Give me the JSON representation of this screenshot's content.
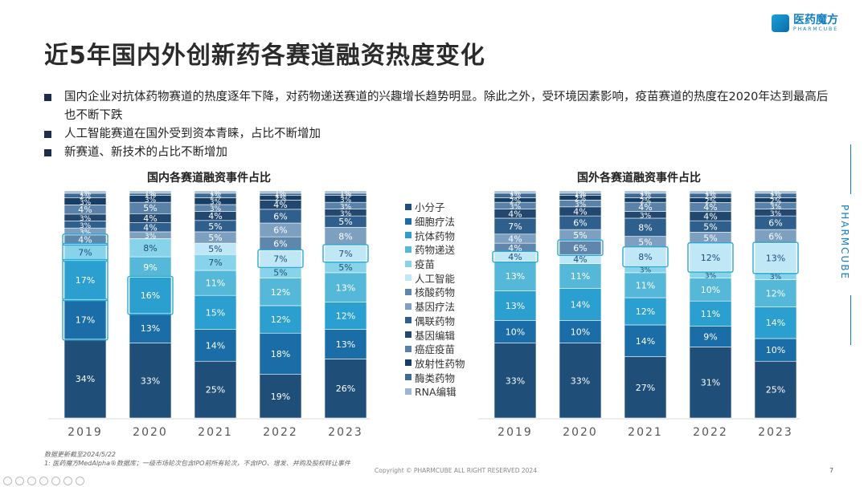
{
  "header": {
    "title": "近5年国内外创新药各赛道融资热度变化",
    "logo_cn": "医药魔方",
    "logo_en": "PHARMCUBE"
  },
  "bullets": [
    "国内企业对抗体药物赛道的热度逐年下降，对药物递送赛道的兴趣增长趋势明显。除此之外，受环境因素影响，疫苗赛道的热度在2020年达到最高后也不断下跌",
    "人工智能赛道在国外受到资本青睐，占比不断增加",
    "新赛道、新技术的占比不断增加"
  ],
  "side_brand": "PHARMCUBE",
  "legend": {
    "items": [
      "小分子",
      "细胞疗法",
      "抗体药物",
      "药物递送",
      "疫苗",
      "人工智能",
      "核酸药物",
      "基因疗法",
      "偶联药物",
      "基因编辑",
      "癌症疫苗",
      "放射性药物",
      "酶类药物",
      "RNA编辑"
    ]
  },
  "colors": {
    "小分子": "#1f4e79",
    "细胞疗法": "#1a6da6",
    "抗体药物": "#2a9fd0",
    "药物递送": "#56b8d8",
    "疫苗": "#86d3ea",
    "人工智能": "#bfe7f5",
    "核酸药物": "#5f86ab",
    "基因疗法": "#7d9fc0",
    "偶联药物": "#2f5f8c",
    "基因编辑": "#22486f",
    "癌症疫苗": "#5a82a8",
    "放射性药物": "#163d63",
    "酶类药物": "#3e6a93",
    "RNA编辑": "#9cb6d0",
    "highlight_border": "#2aa8d8"
  },
  "chart_data": [
    {
      "type": "bar",
      "stacked": "percent",
      "title": "国内各赛道融资事件占比",
      "categories": [
        "2019",
        "2020",
        "2021",
        "2022",
        "2023"
      ],
      "series": [
        {
          "name": "小分子",
          "values": [
            34,
            33,
            25,
            19,
            26
          ]
        },
        {
          "name": "细胞疗法",
          "values": [
            17,
            13,
            14,
            18,
            13
          ]
        },
        {
          "name": "抗体药物",
          "values": [
            17,
            16,
            15,
            12,
            12
          ]
        },
        {
          "name": "药物递送",
          "values": [
            0,
            9,
            11,
            12,
            13
          ]
        },
        {
          "name": "疫苗",
          "values": [
            7,
            8,
            7,
            5,
            5
          ]
        },
        {
          "name": "人工智能",
          "values": [
            0,
            0,
            5,
            7,
            7
          ]
        },
        {
          "name": "核酸药物",
          "values": [
            4,
            0,
            0,
            6,
            0
          ]
        },
        {
          "name": "基因疗法",
          "values": [
            3,
            3,
            5,
            6,
            8
          ]
        },
        {
          "name": "偶联药物",
          "values": [
            3,
            4,
            5,
            6,
            5
          ]
        },
        {
          "name": "基因编辑",
          "values": [
            3,
            4,
            4,
            4,
            3
          ]
        },
        {
          "name": "癌症疫苗",
          "values": [
            4,
            5,
            3,
            0,
            3
          ]
        },
        {
          "name": "放射性药物",
          "values": [
            3,
            3,
            3,
            2,
            3
          ]
        },
        {
          "name": "酶类药物",
          "values": [
            2,
            1,
            2,
            1,
            1
          ]
        },
        {
          "name": "RNA编辑",
          "values": [
            1,
            1,
            1,
            1,
            1
          ]
        }
      ],
      "highlights": [
        {
          "category": "2019",
          "series": [
            "细胞疗法",
            "抗体药物",
            "疫苗",
            "核酸药物"
          ]
        },
        {
          "category": "2020",
          "series": [
            "抗体药物"
          ]
        },
        {
          "category": "2022",
          "series": [
            "人工智能"
          ]
        },
        {
          "category": "2023",
          "series": [
            "人工智能"
          ]
        }
      ]
    },
    {
      "type": "bar",
      "stacked": "percent",
      "title": "国外各赛道融资事件占比",
      "categories": [
        "2019",
        "2020",
        "2021",
        "2022",
        "2023"
      ],
      "series": [
        {
          "name": "小分子",
          "values": [
            33,
            33,
            27,
            31,
            25
          ]
        },
        {
          "name": "细胞疗法",
          "values": [
            10,
            10,
            14,
            9,
            10
          ]
        },
        {
          "name": "抗体药物",
          "values": [
            13,
            14,
            12,
            11,
            14
          ]
        },
        {
          "name": "药物递送",
          "values": [
            13,
            11,
            11,
            10,
            12
          ]
        },
        {
          "name": "疫苗",
          "values": [
            0,
            0,
            3,
            3,
            3
          ]
        },
        {
          "name": "人工智能",
          "values": [
            4,
            4,
            8,
            12,
            13
          ]
        },
        {
          "name": "核酸药物",
          "values": [
            4,
            6,
            0,
            0,
            0
          ]
        },
        {
          "name": "基因疗法",
          "values": [
            4,
            5,
            5,
            5,
            6
          ]
        },
        {
          "name": "偶联药物",
          "values": [
            7,
            6,
            8,
            5,
            6
          ]
        },
        {
          "name": "基因编辑",
          "values": [
            4,
            4,
            3,
            4,
            3
          ]
        },
        {
          "name": "癌症疫苗",
          "values": [
            3,
            3,
            4,
            4,
            3
          ]
        },
        {
          "name": "放射性药物",
          "values": [
            2,
            2,
            2,
            2,
            2
          ]
        },
        {
          "name": "酶类药物",
          "values": [
            2,
            1,
            2,
            2,
            2
          ]
        },
        {
          "name": "RNA编辑",
          "values": [
            1,
            1,
            1,
            1,
            1
          ]
        }
      ],
      "highlights": [
        {
          "category": "2019",
          "series": [
            "人工智能"
          ]
        },
        {
          "category": "2020",
          "series": [
            "核酸药物"
          ]
        },
        {
          "category": "2021",
          "series": [
            "人工智能"
          ]
        },
        {
          "category": "2022",
          "series": [
            "人工智能"
          ]
        },
        {
          "category": "2023",
          "series": [
            "人工智能"
          ]
        }
      ]
    }
  ],
  "footnotes": [
    "数据更新截至2024/5/22",
    "1:   医药魔方MedAlpha®数据库；一级市场轮次包含IPO前所有轮次，不含IPO、增发、并购及股权转让事件"
  ],
  "copyright": "Copyright © PHARMCUBE ALL RIGHT RESERVED 2024",
  "page_number": "7"
}
